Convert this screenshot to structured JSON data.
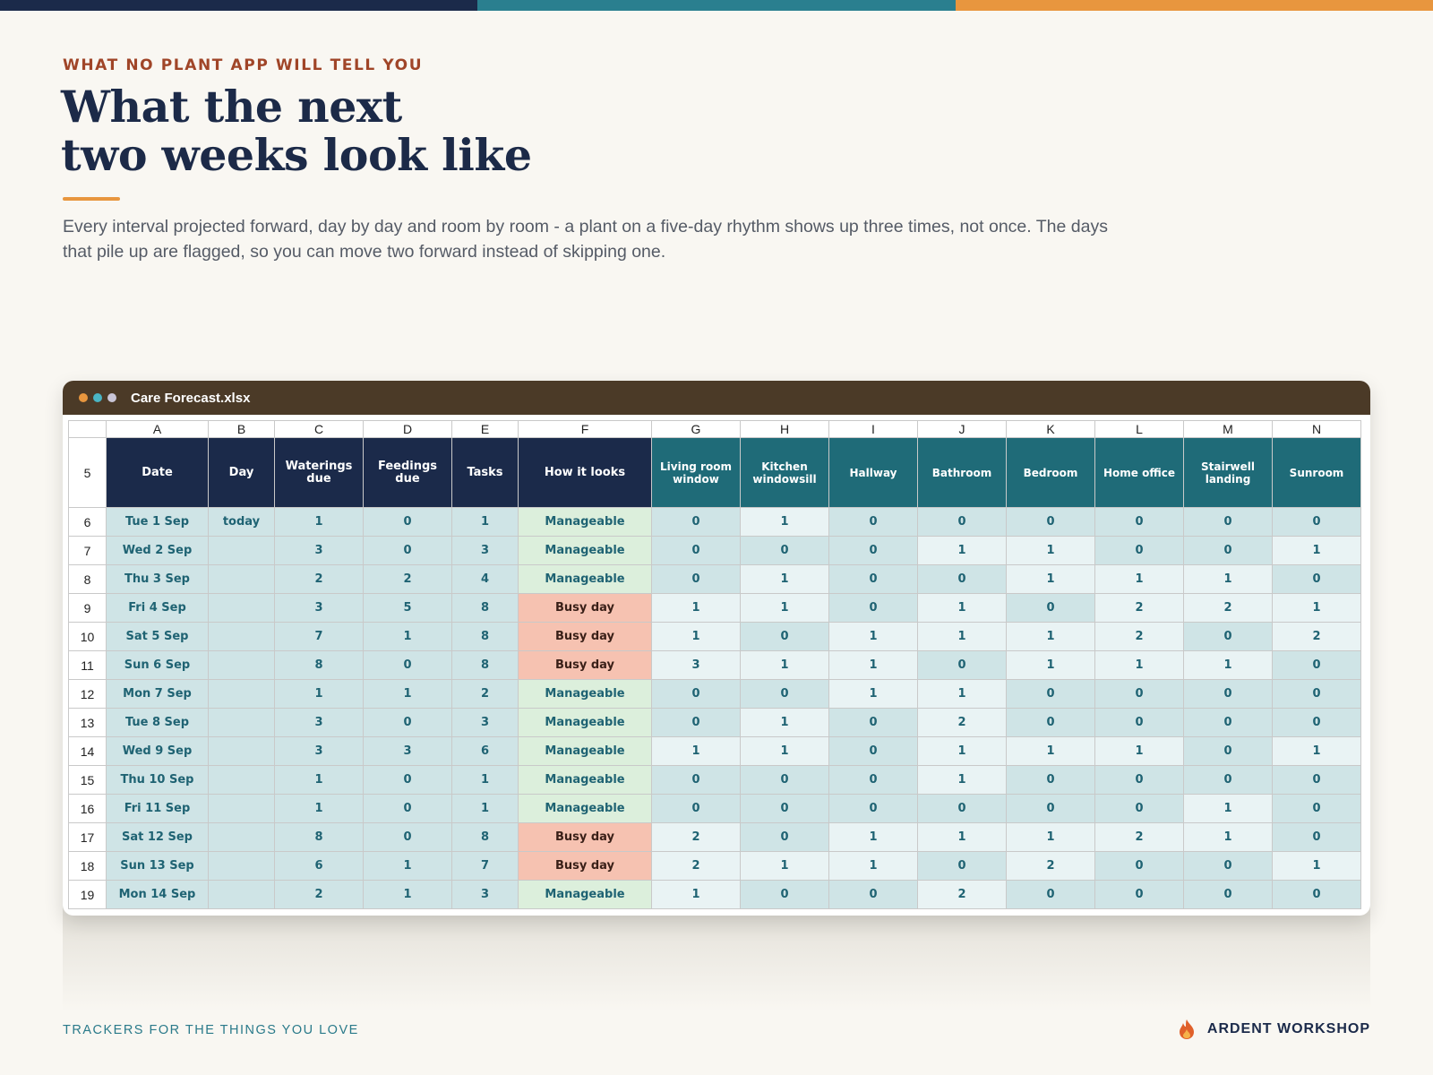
{
  "colors": {
    "accent_navy": "#1b2a4a",
    "accent_teal": "#2a7f8f",
    "accent_orange": "#e8963e",
    "dot_orange": "#e8963e",
    "dot_teal": "#4ab5c4",
    "dot_gray": "#c9c5d6",
    "busy": "#f6c2b1",
    "manageable": "#dcefdc"
  },
  "eyebrow": "WHAT NO PLANT APP WILL TELL YOU",
  "title_lines": [
    "What the next",
    "two weeks look like"
  ],
  "description": "Every interval projected forward, day by day and room by room - a plant on a five-day rhythm shows up three times, not once. The days that pile up are flagged, so you can move two forward instead of skipping one.",
  "window": {
    "filename": "Care Forecast.xlsx"
  },
  "sheet": {
    "column_letters": [
      "A",
      "B",
      "C",
      "D",
      "E",
      "F",
      "G",
      "H",
      "I",
      "J",
      "K",
      "L",
      "M",
      "N"
    ],
    "header_row_number": "5",
    "headers": [
      "Date",
      "Day",
      "Waterings due",
      "Feedings due",
      "Tasks",
      "How it looks",
      "Living room window",
      "Kitchen windowsill",
      "Hallway",
      "Bathroom",
      "Bedroom",
      "Home office",
      "Stairwell landing",
      "Sunroom"
    ],
    "rows": [
      {
        "num": "6",
        "date": "Tue 1 Sep",
        "day": "today",
        "waterings": "1",
        "feedings": "0",
        "tasks": "1",
        "status": "Manageable",
        "rooms": [
          "0",
          "1",
          "0",
          "0",
          "0",
          "0",
          "0",
          "0"
        ]
      },
      {
        "num": "7",
        "date": "Wed 2 Sep",
        "day": "",
        "waterings": "3",
        "feedings": "0",
        "tasks": "3",
        "status": "Manageable",
        "rooms": [
          "0",
          "0",
          "0",
          "1",
          "1",
          "0",
          "0",
          "1"
        ]
      },
      {
        "num": "8",
        "date": "Thu 3 Sep",
        "day": "",
        "waterings": "2",
        "feedings": "2",
        "tasks": "4",
        "status": "Manageable",
        "rooms": [
          "0",
          "1",
          "0",
          "0",
          "1",
          "1",
          "1",
          "0"
        ]
      },
      {
        "num": "9",
        "date": "Fri 4 Sep",
        "day": "",
        "waterings": "3",
        "feedings": "5",
        "tasks": "8",
        "status": "Busy day",
        "rooms": [
          "1",
          "1",
          "0",
          "1",
          "0",
          "2",
          "2",
          "1"
        ]
      },
      {
        "num": "10",
        "date": "Sat 5 Sep",
        "day": "",
        "waterings": "7",
        "feedings": "1",
        "tasks": "8",
        "status": "Busy day",
        "rooms": [
          "1",
          "0",
          "1",
          "1",
          "1",
          "2",
          "0",
          "2"
        ]
      },
      {
        "num": "11",
        "date": "Sun 6 Sep",
        "day": "",
        "waterings": "8",
        "feedings": "0",
        "tasks": "8",
        "status": "Busy day",
        "rooms": [
          "3",
          "1",
          "1",
          "0",
          "1",
          "1",
          "1",
          "0"
        ]
      },
      {
        "num": "12",
        "date": "Mon 7 Sep",
        "day": "",
        "waterings": "1",
        "feedings": "1",
        "tasks": "2",
        "status": "Manageable",
        "rooms": [
          "0",
          "0",
          "1",
          "1",
          "0",
          "0",
          "0",
          "0"
        ]
      },
      {
        "num": "13",
        "date": "Tue 8 Sep",
        "day": "",
        "waterings": "3",
        "feedings": "0",
        "tasks": "3",
        "status": "Manageable",
        "rooms": [
          "0",
          "1",
          "0",
          "2",
          "0",
          "0",
          "0",
          "0"
        ]
      },
      {
        "num": "14",
        "date": "Wed 9 Sep",
        "day": "",
        "waterings": "3",
        "feedings": "3",
        "tasks": "6",
        "status": "Manageable",
        "rooms": [
          "1",
          "1",
          "0",
          "1",
          "1",
          "1",
          "0",
          "1"
        ]
      },
      {
        "num": "15",
        "date": "Thu 10 Sep",
        "day": "",
        "waterings": "1",
        "feedings": "0",
        "tasks": "1",
        "status": "Manageable",
        "rooms": [
          "0",
          "0",
          "0",
          "1",
          "0",
          "0",
          "0",
          "0"
        ]
      },
      {
        "num": "16",
        "date": "Fri 11 Sep",
        "day": "",
        "waterings": "1",
        "feedings": "0",
        "tasks": "1",
        "status": "Manageable",
        "rooms": [
          "0",
          "0",
          "0",
          "0",
          "0",
          "0",
          "1",
          "0"
        ]
      },
      {
        "num": "17",
        "date": "Sat 12 Sep",
        "day": "",
        "waterings": "8",
        "feedings": "0",
        "tasks": "8",
        "status": "Busy day",
        "rooms": [
          "2",
          "0",
          "1",
          "1",
          "1",
          "2",
          "1",
          "0"
        ]
      },
      {
        "num": "18",
        "date": "Sun 13 Sep",
        "day": "",
        "waterings": "6",
        "feedings": "1",
        "tasks": "7",
        "status": "Busy day",
        "rooms": [
          "2",
          "1",
          "1",
          "0",
          "2",
          "0",
          "0",
          "1"
        ]
      },
      {
        "num": "19",
        "date": "Mon 14 Sep",
        "day": "",
        "waterings": "2",
        "feedings": "1",
        "tasks": "3",
        "status": "Manageable",
        "rooms": [
          "1",
          "0",
          "0",
          "2",
          "0",
          "0",
          "0",
          "0"
        ]
      }
    ]
  },
  "footer": {
    "tagline": "TRACKERS FOR THE THINGS YOU LOVE",
    "brand": "ARDENT WORKSHOP",
    "brand_icon": "flame-icon"
  }
}
